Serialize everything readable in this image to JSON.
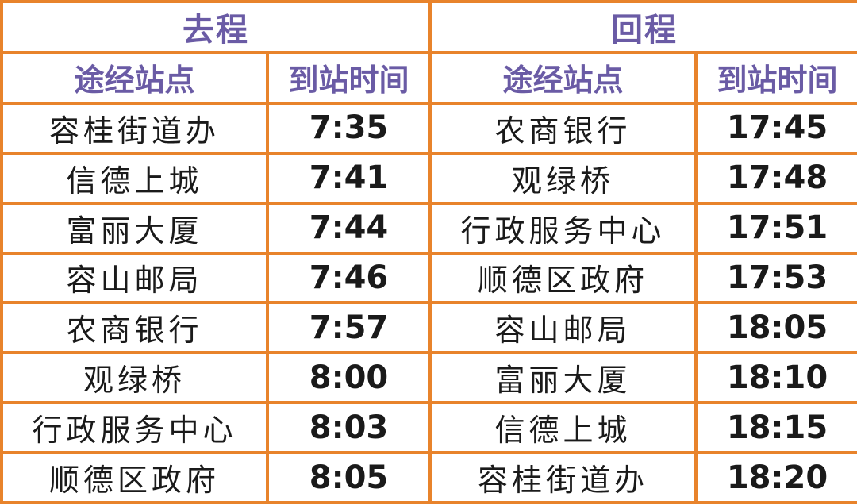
{
  "outbound": {
    "title": "去程",
    "col_station": "途经站点",
    "col_time": "到站时间",
    "rows": [
      {
        "station": "容桂街道办",
        "time": "7:35"
      },
      {
        "station": "信德上城",
        "time": "7:41"
      },
      {
        "station": "富丽大厦",
        "time": "7:44"
      },
      {
        "station": "容山邮局",
        "time": "7:46"
      },
      {
        "station": "农商银行",
        "time": "7:57"
      },
      {
        "station": "观绿桥",
        "time": "8:00"
      },
      {
        "station": "行政服务中心",
        "time": "8:03"
      },
      {
        "station": "顺德区政府",
        "time": "8:05"
      }
    ]
  },
  "return": {
    "title": "回程",
    "col_station": "途经站点",
    "col_time": "到站时间",
    "rows": [
      {
        "station": "农商银行",
        "time": "17:45"
      },
      {
        "station": "观绿桥",
        "time": "17:48"
      },
      {
        "station": "行政服务中心",
        "time": "17:51"
      },
      {
        "station": "顺德区政府",
        "time": "17:53"
      },
      {
        "station": "容山邮局",
        "time": "18:05"
      },
      {
        "station": "富丽大厦",
        "time": "18:10"
      },
      {
        "station": "信德上城",
        "time": "18:15"
      },
      {
        "station": "容桂街道办",
        "time": "18:20"
      }
    ]
  },
  "colors": {
    "border": "#e8832b",
    "header_text": "#6a5ba5",
    "body_text": "#1a1a1a"
  }
}
